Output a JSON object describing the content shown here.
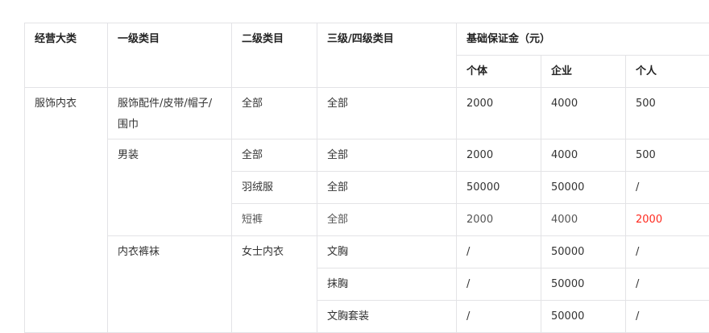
{
  "headers": {
    "category": "经营大类",
    "level1": "一级类目",
    "level2": "二级类目",
    "level34": "三级/四级类目",
    "deposit": "基础保证金（元）",
    "individual_biz": "个体",
    "enterprise": "企业",
    "person": "个人"
  },
  "rows": {
    "main_category": "服饰内衣",
    "r1": {
      "l1": "服饰配件/皮带/帽子/围巾",
      "l2": "全部",
      "l34": "全部",
      "biz": "2000",
      "ent": "4000",
      "per": "500"
    },
    "r2": {
      "l1": "男装",
      "l2": "全部",
      "l34": "全部",
      "biz": "2000",
      "ent": "4000",
      "per": "500"
    },
    "r3": {
      "l2": "羽绒服",
      "l34": "全部",
      "biz": "50000",
      "ent": "50000",
      "per": "/"
    },
    "r4": {
      "l2": "短裤",
      "l34": "全部",
      "biz": "2000",
      "ent": "4000",
      "per": "2000"
    },
    "r5": {
      "l1": "内衣裤袜",
      "l2": "女士内衣",
      "l34": "文胸",
      "biz": "/",
      "ent": "50000",
      "per": "/"
    },
    "r6": {
      "l34": "抹胸",
      "biz": "/",
      "ent": "50000",
      "per": "/"
    },
    "r7": {
      "l34": "文胸套装",
      "biz": "/",
      "ent": "50000",
      "per": "/"
    }
  },
  "colors": {
    "highlight": "#ff2a1f",
    "border": "#e3e3e6"
  }
}
